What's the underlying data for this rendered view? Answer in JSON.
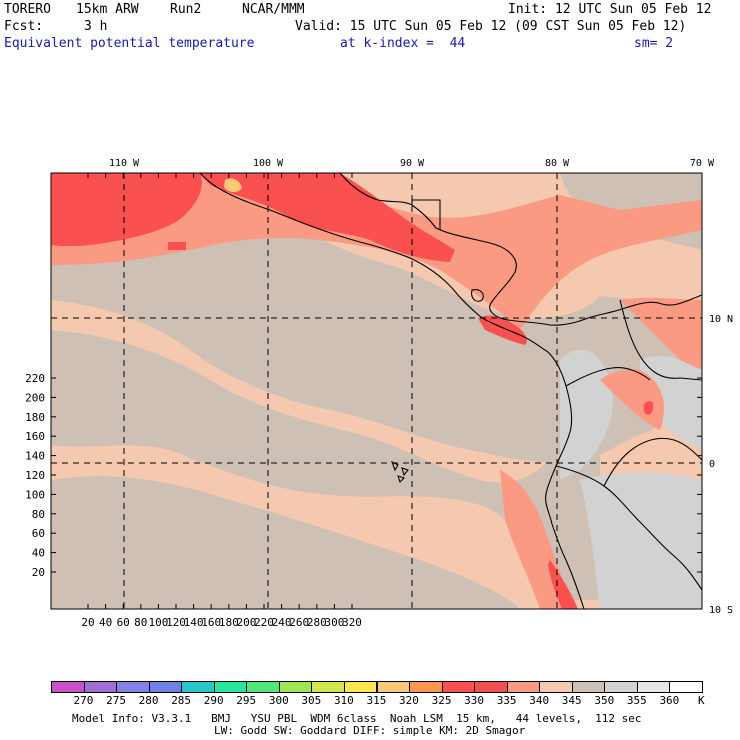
{
  "header": {
    "model": "TORERO",
    "resolution": "15km ARW",
    "run": "Run2",
    "org": "NCAR/MMM",
    "init": "Init: 12 UTC Sun 05 Feb 12",
    "fcst_label": "Fcst:",
    "fcst_value": "3 h",
    "valid": "Valid: 15 UTC Sun 05 Feb 12 (09 CST Sun 05 Feb 12)",
    "field": "Equivalent potential temperature",
    "level": "at k-index =  44",
    "smoothing": "sm= 2"
  },
  "map": {
    "lon_labels": [
      "110 W",
      "100 W",
      "90 W",
      "80 W",
      "70 W"
    ],
    "lat_labels": [
      "10 N",
      "0",
      "10 S"
    ],
    "y_ticks": [
      "20",
      "40",
      "60",
      "80",
      "100",
      "120",
      "140",
      "160",
      "180",
      "200",
      "220"
    ],
    "x_ticks": [
      "20",
      "40",
      "60",
      "80",
      "100",
      "120",
      "140",
      "160",
      "180",
      "200",
      "220",
      "240",
      "260",
      "280",
      "300",
      "320"
    ],
    "colors": {
      "hot": "#fa5050",
      "warm": "#fa9a82",
      "mild": "#f5c8b0",
      "cool": "#cfc0b6",
      "coolest": "#d2d2d2",
      "peak": "#fac878",
      "white": "#ffffff"
    }
  },
  "colorbar": {
    "labels": [
      "270",
      "275",
      "280",
      "285",
      "290",
      "295",
      "300",
      "305",
      "310",
      "315",
      "320",
      "325",
      "330",
      "335",
      "340",
      "345",
      "350",
      "355",
      "360"
    ],
    "unit": "K",
    "colors": [
      "#c850c8",
      "#a06ed2",
      "#8282e6",
      "#6e82e6",
      "#28c8c8",
      "#28e6a0",
      "#50e678",
      "#a0e650",
      "#d2e650",
      "#fae650",
      "#fac878",
      "#fa9650",
      "#fa5050",
      "#f05050",
      "#fa9a82",
      "#f5c8b0",
      "#cfc0b6",
      "#d2d2d2",
      "#e6e6e6",
      "#ffffff"
    ]
  },
  "footer": {
    "line1": "Model Info: V3.3.1   BMJ   YSU PBL  WDM 6class  Noah LSM  15 km,   44 levels,  112 sec",
    "line2": "LW: Godd SW: Goddard DIFF: simple KM: 2D Smagor"
  }
}
